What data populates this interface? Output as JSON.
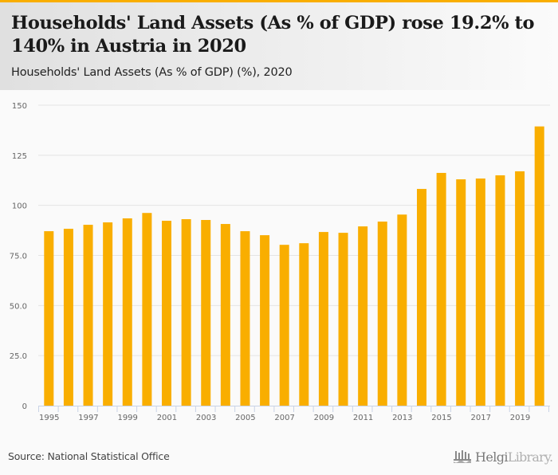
{
  "header": {
    "title": "Households' Land Assets (As % of GDP) rose 19.2% to 140% in Austria in 2020",
    "subtitle": "Households' Land Assets (As % of GDP) (%), 2020"
  },
  "footer": {
    "source": "Source: National Statistical Office",
    "logo_primary": "Helgi",
    "logo_secondary": "Library."
  },
  "colors": {
    "accent": "#f9ae00",
    "bar": "#f9ae00",
    "grid": "#e4e4e4",
    "axis": "#c9d3e6",
    "tick_text": "#666666"
  },
  "chart_data": {
    "type": "bar",
    "title": "Households' Land Assets (As % of GDP) (%), 2020",
    "xlabel": "",
    "ylabel": "",
    "ylim": [
      0,
      150
    ],
    "yticks": [
      0,
      25,
      50,
      75,
      100,
      125,
      150
    ],
    "ytick_labels": [
      "0",
      "25.0",
      "50.0",
      "75.0",
      "100",
      "125",
      "150"
    ],
    "grid": true,
    "legend": "none",
    "categories": [
      "1995",
      "1996",
      "1997",
      "1998",
      "1999",
      "2000",
      "2001",
      "2002",
      "2003",
      "2004",
      "2005",
      "2006",
      "2007",
      "2008",
      "2009",
      "2010",
      "2011",
      "2012",
      "2013",
      "2014",
      "2015",
      "2016",
      "2017",
      "2018",
      "2019",
      "2020"
    ],
    "xtick_labels": [
      "1995",
      "1997",
      "1999",
      "2001",
      "2003",
      "2005",
      "2007",
      "2009",
      "2011",
      "2013",
      "2015",
      "2017",
      "2019"
    ],
    "values": [
      87.1,
      88.3,
      90.3,
      91.5,
      93.5,
      96.2,
      92.3,
      93.1,
      92.7,
      90.7,
      87.1,
      85.1,
      80.3,
      81.1,
      86.7,
      86.3,
      89.5,
      91.9,
      95.4,
      108.2,
      116.2,
      113.0,
      113.4,
      115.0,
      117.0,
      139.4
    ]
  }
}
